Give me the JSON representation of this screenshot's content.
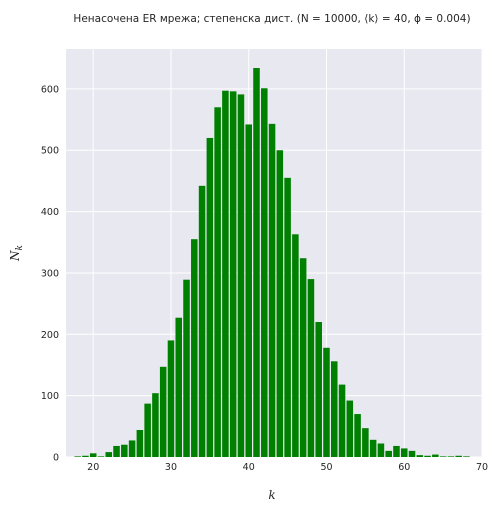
{
  "chart_data": {
    "type": "bar",
    "title": "Ненасочена ER мрежа; степенска дист. (N = 10000, ⟨k⟩ = 40, ϕ = 0.004)",
    "xlabel": "k",
    "ylabel": "N_k",
    "xlim": [
      16.5,
      70
    ],
    "ylim": [
      0,
      665
    ],
    "xticks": [
      20,
      30,
      40,
      50,
      60,
      70
    ],
    "yticks": [
      0,
      100,
      200,
      300,
      400,
      500,
      600
    ],
    "grid": true,
    "bar_color": "#008000",
    "background_color": "#e8e8f0",
    "series": [
      {
        "values": [
          [
            18,
            1
          ],
          [
            19,
            2
          ],
          [
            20,
            6
          ],
          [
            21,
            1
          ],
          [
            22,
            8
          ],
          [
            23,
            18
          ],
          [
            24,
            20
          ],
          [
            25,
            27
          ],
          [
            26,
            44
          ],
          [
            27,
            87
          ],
          [
            28,
            104
          ],
          [
            29,
            147
          ],
          [
            30,
            190
          ],
          [
            31,
            227
          ],
          [
            32,
            289
          ],
          [
            33,
            355
          ],
          [
            34,
            442
          ],
          [
            35,
            520
          ],
          [
            36,
            570
          ],
          [
            37,
            597
          ],
          [
            38,
            596
          ],
          [
            39,
            591
          ],
          [
            40,
            542
          ],
          [
            41,
            634
          ],
          [
            42,
            601
          ],
          [
            43,
            543
          ],
          [
            44,
            500
          ],
          [
            45,
            455
          ],
          [
            46,
            363
          ],
          [
            47,
            324
          ],
          [
            48,
            290
          ],
          [
            49,
            220
          ],
          [
            50,
            178
          ],
          [
            51,
            156
          ],
          [
            52,
            118
          ],
          [
            53,
            92
          ],
          [
            54,
            70
          ],
          [
            55,
            47
          ],
          [
            56,
            28
          ],
          [
            57,
            22
          ],
          [
            58,
            10
          ],
          [
            59,
            18
          ],
          [
            60,
            14
          ],
          [
            61,
            10
          ],
          [
            62,
            3
          ],
          [
            63,
            2
          ],
          [
            64,
            4
          ],
          [
            65,
            1
          ],
          [
            66,
            1
          ],
          [
            67,
            2
          ],
          [
            68,
            1
          ]
        ]
      }
    ]
  }
}
